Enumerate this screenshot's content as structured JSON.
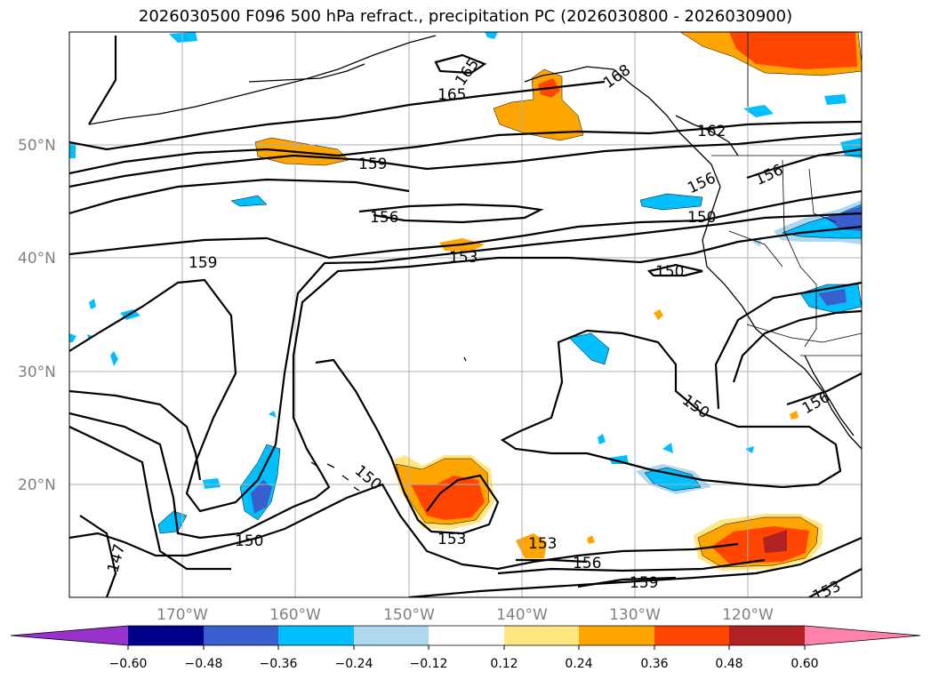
{
  "title": "2026030500 F096 500 hPa refract., precipitation PC (2026030800 - 2026030900)",
  "lon_labels": [
    "170°W",
    "160°W",
    "150°W",
    "140°W",
    "130°W",
    "120°W"
  ],
  "lat_labels": [
    "50°N",
    "40°N",
    "30°N",
    "20°N"
  ],
  "colorbar": {
    "ticks": [
      "−0.60",
      "−0.48",
      "−0.36",
      "−0.24",
      "−0.12",
      "0.12",
      "0.24",
      "0.36",
      "0.48",
      "0.60"
    ],
    "colors": [
      "#9932cc",
      "#00008b",
      "#3a5fcd",
      "#00bfff",
      "#add8f0",
      "#ffffff",
      "#ffe680",
      "#ffa500",
      "#ff4500",
      "#b22222",
      "#ff82ab"
    ]
  },
  "contour_labels": [
    "165",
    "165",
    "168",
    "162",
    "159",
    "156",
    "156",
    "156",
    "153",
    "150",
    "159",
    "150",
    "156",
    "150",
    "153",
    "150",
    "147",
    "153",
    "156",
    "159",
    "153"
  ]
}
